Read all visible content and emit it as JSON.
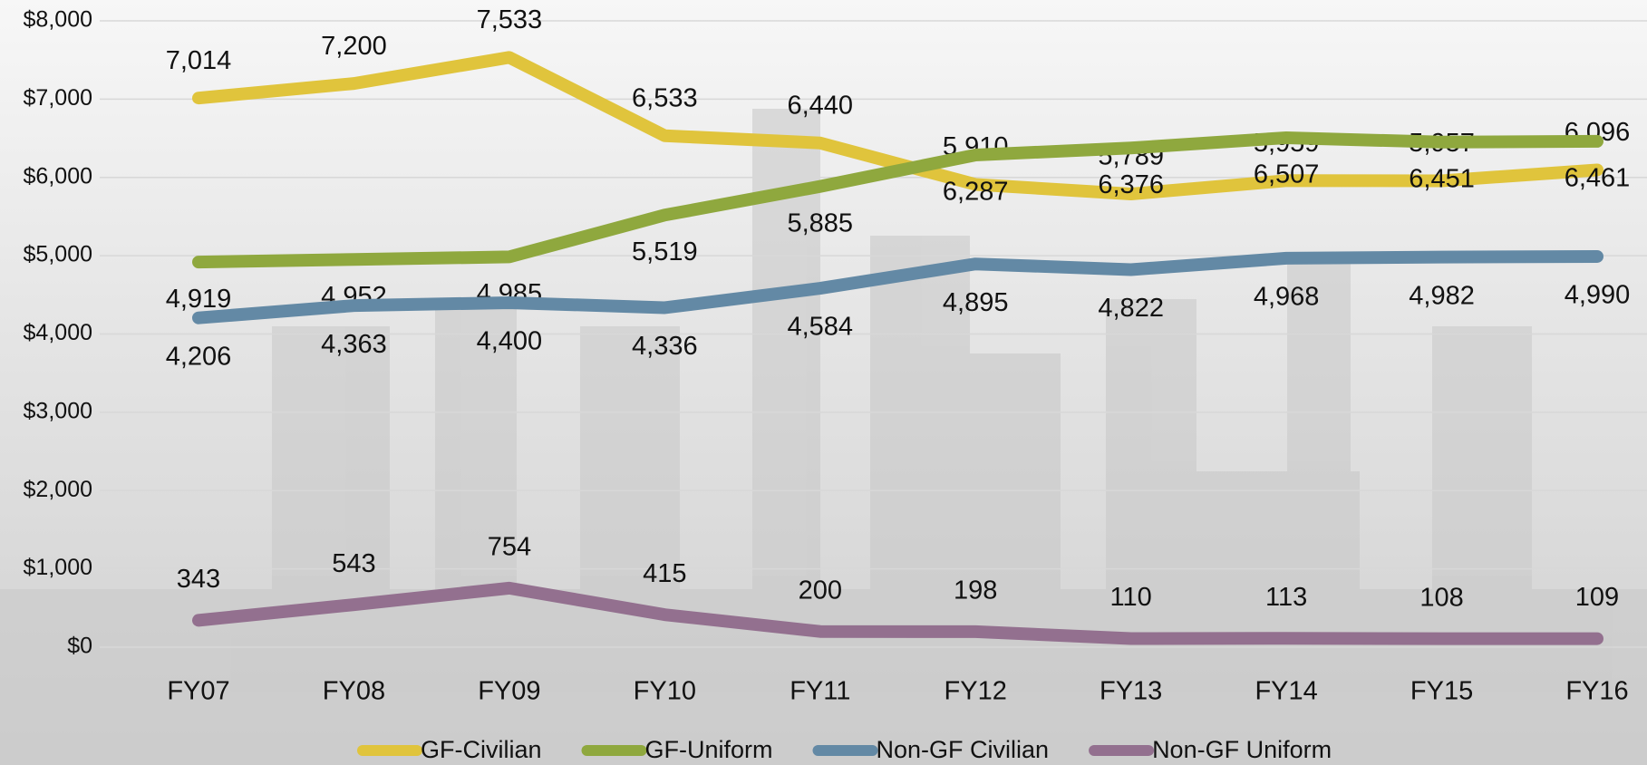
{
  "chart_data": {
    "type": "line",
    "categories": [
      "FY07",
      "FY08",
      "FY09",
      "FY10",
      "FY11",
      "FY12",
      "FY13",
      "FY14",
      "FY15",
      "FY16"
    ],
    "series": [
      {
        "name": "GF-Civilian",
        "color": "#e0c43c",
        "values": [
          7014,
          7200,
          7533,
          6533,
          6440,
          5910,
          5789,
          5959,
          5957,
          6096
        ],
        "value_labels": [
          "7,014",
          "7,200",
          "7,533",
          "6,533",
          "6,440",
          "5,910",
          "5,789",
          "5,959",
          "5,957",
          "6,096"
        ]
      },
      {
        "name": "GF-Uniform",
        "color": "#8fa83e",
        "values": [
          4919,
          4952,
          4985,
          5519,
          5885,
          6287,
          6376,
          6507,
          6451,
          6461
        ],
        "value_labels": [
          "4,919",
          "4,952",
          "4,985",
          "5,519",
          "5,885",
          "6,287",
          "6,376",
          "6,507",
          "6,451",
          "6,461"
        ]
      },
      {
        "name": "Non-GF Civilian",
        "color": "#6389a5",
        "values": [
          4206,
          4363,
          4400,
          4336,
          4584,
          4895,
          4822,
          4968,
          4982,
          4990
        ],
        "value_labels": [
          "4,206",
          "4,363",
          "4,400",
          "4,336",
          "4,584",
          "4,895",
          "4,822",
          "4,968",
          "4,982",
          "4,990"
        ]
      },
      {
        "name": "Non-GF Uniform",
        "color": "#93708f",
        "values": [
          343,
          543,
          754,
          415,
          200,
          198,
          110,
          113,
          108,
          109
        ]
      }
    ],
    "ylim": [
      0,
      8000
    ],
    "yticks": [
      {
        "value": 0,
        "label": "$0"
      },
      {
        "value": 1000,
        "label": "$1,000"
      },
      {
        "value": 2000,
        "label": "$2,000"
      },
      {
        "value": 3000,
        "label": "$3,000"
      },
      {
        "value": 4000,
        "label": "$4,000"
      },
      {
        "value": 5000,
        "label": "$5,000"
      },
      {
        "value": 6000,
        "label": "$6,000"
      },
      {
        "value": 7000,
        "label": "$7,000"
      },
      {
        "value": 8000,
        "label": "$8,000"
      }
    ],
    "grid": true
  }
}
